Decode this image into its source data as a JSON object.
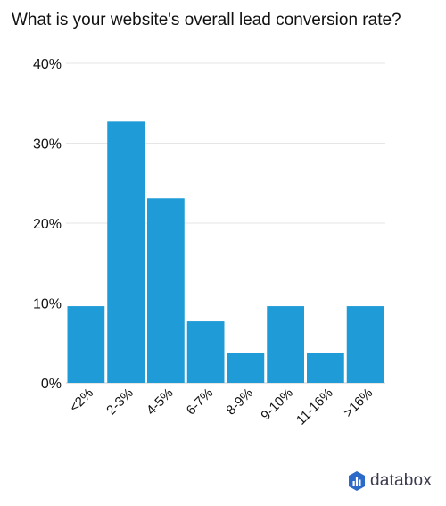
{
  "title": "What is your website's overall lead conversion rate?",
  "brand": {
    "name": "databox",
    "logo_icon": "databox-logo-icon",
    "logo_color": "#2c6ac9"
  },
  "chart_data": {
    "type": "bar",
    "title": "What is your website's overall lead conversion rate?",
    "categories": [
      "<2%",
      "2-3%",
      "4-5%",
      "6-7%",
      "8-9%",
      "9-10%",
      "11-16%",
      ">16%"
    ],
    "values": [
      9.6,
      32.7,
      23.1,
      7.7,
      3.8,
      9.6,
      3.8,
      9.6
    ],
    "y_unit": "%",
    "ylim": [
      0,
      40
    ],
    "yticks": [
      0,
      10,
      20,
      30,
      40
    ],
    "ytick_labels": [
      "0%",
      "10%",
      "20%",
      "30%",
      "40%"
    ],
    "grid": true,
    "legend": "none",
    "bar_color": "#1f9bd7",
    "grid_color": "#e6e6e6",
    "axis_color": "#cccccc"
  }
}
